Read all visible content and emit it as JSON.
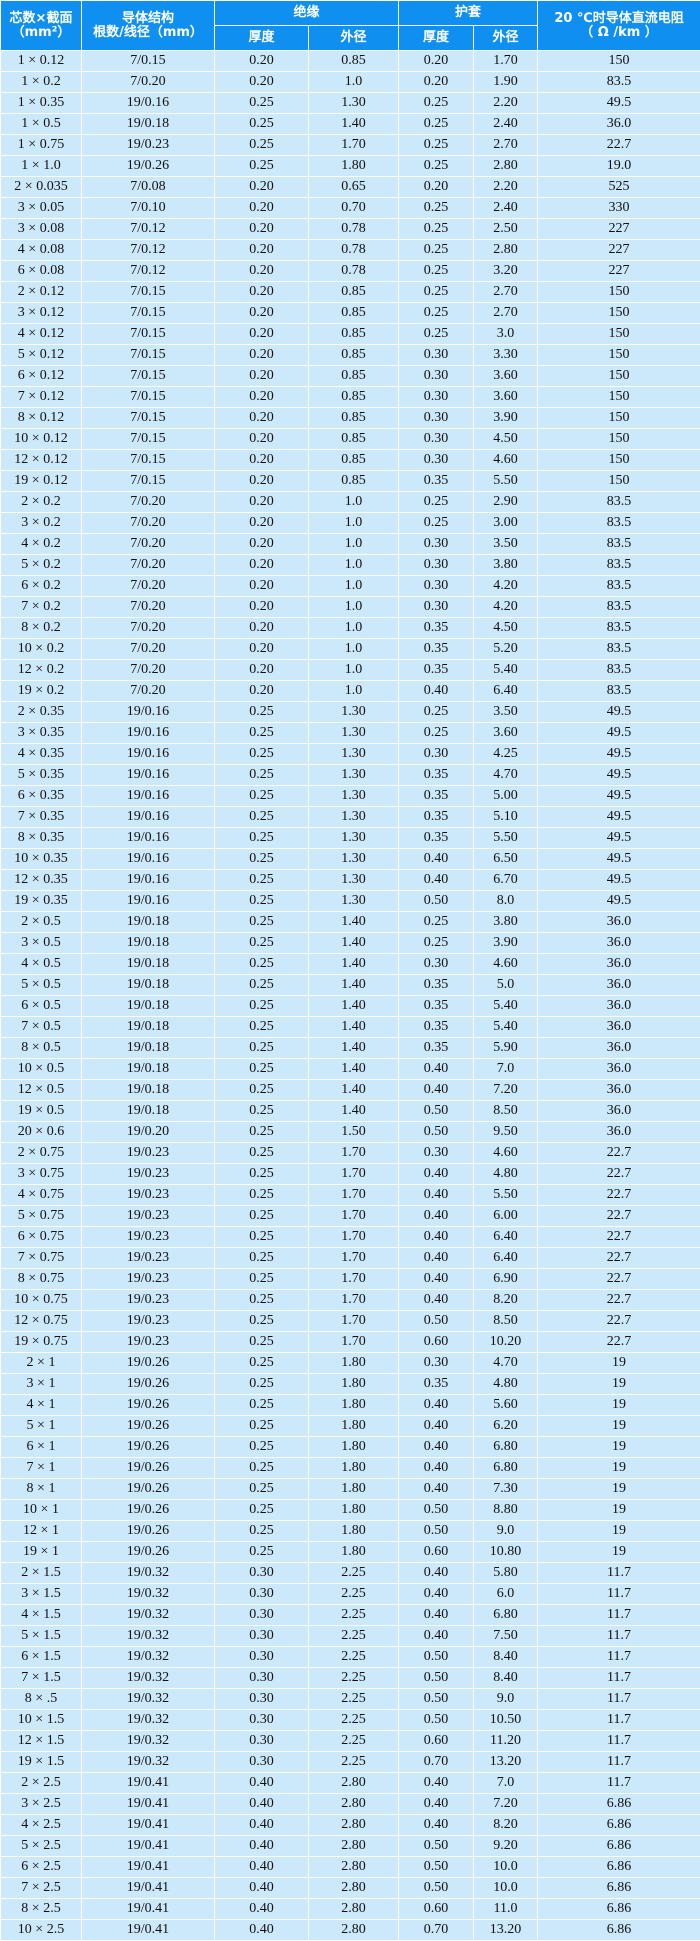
{
  "header": {
    "spec": {
      "title": "芯数×截面",
      "unit": "（mm²）"
    },
    "conductor": {
      "title": "导体结构",
      "unit": "根数/线径（mm）"
    },
    "insulation": {
      "title": "绝缘",
      "sub": [
        "厚度",
        "外径"
      ]
    },
    "sheath": {
      "title": "护套",
      "sub": [
        "厚度",
        "外径"
      ]
    },
    "resistance": {
      "title": "20 ℃时导体直流电阻",
      "unit": "（ Ω /km ）"
    }
  },
  "rows": [
    [
      "1 × 0.12",
      "7/0.15",
      "0.20",
      "0.85",
      "0.20",
      "1.70",
      "150"
    ],
    [
      "1 × 0.2",
      "7/0.20",
      "0.20",
      "1.0",
      "0.20",
      "1.90",
      "83.5"
    ],
    [
      "1 × 0.35",
      "19/0.16",
      "0.25",
      "1.30",
      "0.25",
      "2.20",
      "49.5"
    ],
    [
      "1 × 0.5",
      "19/0.18",
      "0.25",
      "1.40",
      "0.25",
      "2.40",
      "36.0"
    ],
    [
      "1 × 0.75",
      "19/0.23",
      "0.25",
      "1.70",
      "0.25",
      "2.70",
      "22.7"
    ],
    [
      "1 × 1.0",
      "19/0.26",
      "0.25",
      "1.80",
      "0.25",
      "2.80",
      "19.0"
    ],
    [
      "2 × 0.035",
      "7/0.08",
      "0.20",
      "0.65",
      "0.20",
      "2.20",
      "525"
    ],
    [
      "3 × 0.05",
      "7/0.10",
      "0.20",
      "0.70",
      "0.25",
      "2.40",
      "330"
    ],
    [
      "3 × 0.08",
      "7/0.12",
      "0.20",
      "0.78",
      "0.25",
      "2.50",
      "227"
    ],
    [
      "4 × 0.08",
      "7/0.12",
      "0.20",
      "0.78",
      "0.25",
      "2.80",
      "227"
    ],
    [
      "6 × 0.08",
      "7/0.12",
      "0.20",
      "0.78",
      "0.25",
      "3.20",
      "227"
    ],
    [
      "2 × 0.12",
      "7/0.15",
      "0.20",
      "0.85",
      "0.25",
      "2.70",
      "150"
    ],
    [
      "3 × 0.12",
      "7/0.15",
      "0.20",
      "0.85",
      "0.25",
      "2.70",
      "150"
    ],
    [
      "4 × 0.12",
      "7/0.15",
      "0.20",
      "0.85",
      "0.25",
      "3.0",
      "150"
    ],
    [
      "5 × 0.12",
      "7/0.15",
      "0.20",
      "0.85",
      "0.30",
      "3.30",
      "150"
    ],
    [
      "6 × 0.12",
      "7/0.15",
      "0.20",
      "0.85",
      "0.30",
      "3.60",
      "150"
    ],
    [
      "7 × 0.12",
      "7/0.15",
      "0.20",
      "0.85",
      "0.30",
      "3.60",
      "150"
    ],
    [
      "8 × 0.12",
      "7/0.15",
      "0.20",
      "0.85",
      "0.30",
      "3.90",
      "150"
    ],
    [
      "10 × 0.12",
      "7/0.15",
      "0.20",
      "0.85",
      "0.30",
      "4.50",
      "150"
    ],
    [
      "12 × 0.12",
      "7/0.15",
      "0.20",
      "0.85",
      "0.30",
      "4.60",
      "150"
    ],
    [
      "19 × 0.12",
      "7/0.15",
      "0.20",
      "0.85",
      "0.35",
      "5.50",
      "150"
    ],
    [
      "2 × 0.2",
      "7/0.20",
      "0.20",
      "1.0",
      "0.25",
      "2.90",
      "83.5"
    ],
    [
      "3 × 0.2",
      "7/0.20",
      "0.20",
      "1.0",
      "0.25",
      "3.00",
      "83.5"
    ],
    [
      "4 × 0.2",
      "7/0.20",
      "0.20",
      "1.0",
      "0.30",
      "3.50",
      "83.5"
    ],
    [
      "5 × 0.2",
      "7/0.20",
      "0.20",
      "1.0",
      "0.30",
      "3.80",
      "83.5"
    ],
    [
      "6 × 0.2",
      "7/0.20",
      "0.20",
      "1.0",
      "0.30",
      "4.20",
      "83.5"
    ],
    [
      "7 × 0.2",
      "7/0.20",
      "0.20",
      "1.0",
      "0.30",
      "4.20",
      "83.5"
    ],
    [
      "8 × 0.2",
      "7/0.20",
      "0.20",
      "1.0",
      "0.35",
      "4.50",
      "83.5"
    ],
    [
      "10 × 0.2",
      "7/0.20",
      "0.20",
      "1.0",
      "0.35",
      "5.20",
      "83.5"
    ],
    [
      "12 × 0.2",
      "7/0.20",
      "0.20",
      "1.0",
      "0.35",
      "5.40",
      "83.5"
    ],
    [
      "19 × 0.2",
      "7/0.20",
      "0.20",
      "1.0",
      "0.40",
      "6.40",
      "83.5"
    ],
    [
      "2 × 0.35",
      "19/0.16",
      "0.25",
      "1.30",
      "0.25",
      "3.50",
      "49.5"
    ],
    [
      "3 × 0.35",
      "19/0.16",
      "0.25",
      "1.30",
      "0.25",
      "3.60",
      "49.5"
    ],
    [
      "4 × 0.35",
      "19/0.16",
      "0.25",
      "1.30",
      "0.30",
      "4.25",
      "49.5"
    ],
    [
      "5 × 0.35",
      "19/0.16",
      "0.25",
      "1.30",
      "0.35",
      "4.70",
      "49.5"
    ],
    [
      "6 × 0.35",
      "19/0.16",
      "0.25",
      "1.30",
      "0.35",
      "5.00",
      "49.5"
    ],
    [
      "7 × 0.35",
      "19/0.16",
      "0.25",
      "1.30",
      "0.35",
      "5.10",
      "49.5"
    ],
    [
      "8 × 0.35",
      "19/0.16",
      "0.25",
      "1.30",
      "0.35",
      "5.50",
      "49.5"
    ],
    [
      "10 × 0.35",
      "19/0.16",
      "0.25",
      "1.30",
      "0.40",
      "6.50",
      "49.5"
    ],
    [
      "12 × 0.35",
      "19/0.16",
      "0.25",
      "1.30",
      "0.40",
      "6.70",
      "49.5"
    ],
    [
      "19 × 0.35",
      "19/0.16",
      "0.25",
      "1.30",
      "0.50",
      "8.0",
      "49.5"
    ],
    [
      "2 × 0.5",
      "19/0.18",
      "0.25",
      "1.40",
      "0.25",
      "3.80",
      "36.0"
    ],
    [
      "3 × 0.5",
      "19/0.18",
      "0.25",
      "1.40",
      "0.25",
      "3.90",
      "36.0"
    ],
    [
      "4 × 0.5",
      "19/0.18",
      "0.25",
      "1.40",
      "0.30",
      "4.60",
      "36.0"
    ],
    [
      "5 × 0.5",
      "19/0.18",
      "0.25",
      "1.40",
      "0.35",
      "5.0",
      "36.0"
    ],
    [
      "6 × 0.5",
      "19/0.18",
      "0.25",
      "1.40",
      "0.35",
      "5.40",
      "36.0"
    ],
    [
      "7 × 0.5",
      "19/0.18",
      "0.25",
      "1.40",
      "0.35",
      "5.40",
      "36.0"
    ],
    [
      "8 × 0.5",
      "19/0.18",
      "0.25",
      "1.40",
      "0.35",
      "5.90",
      "36.0"
    ],
    [
      "10 × 0.5",
      "19/0.18",
      "0.25",
      "1.40",
      "0.40",
      "7.0",
      "36.0"
    ],
    [
      "12 × 0.5",
      "19/0.18",
      "0.25",
      "1.40",
      "0.40",
      "7.20",
      "36.0"
    ],
    [
      "19 × 0.5",
      "19/0.18",
      "0.25",
      "1.40",
      "0.50",
      "8.50",
      "36.0"
    ],
    [
      "20 × 0.6",
      "19/0.20",
      "0.25",
      "1.50",
      "0.50",
      "9.50",
      "36.0"
    ],
    [
      "2 × 0.75",
      "19/0.23",
      "0.25",
      "1.70",
      "0.30",
      "4.60",
      "22.7"
    ],
    [
      "3 × 0.75",
      "19/0.23",
      "0.25",
      "1.70",
      "0.40",
      "4.80",
      "22.7"
    ],
    [
      "4 × 0.75",
      "19/0.23",
      "0.25",
      "1.70",
      "0.40",
      "5.50",
      "22.7"
    ],
    [
      "5 × 0.75",
      "19/0.23",
      "0.25",
      "1.70",
      "0.40",
      "6.00",
      "22.7"
    ],
    [
      "6 × 0.75",
      "19/0.23",
      "0.25",
      "1.70",
      "0.40",
      "6.40",
      "22.7"
    ],
    [
      "7 × 0.75",
      "19/0.23",
      "0.25",
      "1.70",
      "0.40",
      "6.40",
      "22.7"
    ],
    [
      "8 × 0.75",
      "19/0.23",
      "0.25",
      "1.70",
      "0.40",
      "6.90",
      "22.7"
    ],
    [
      "10 × 0.75",
      "19/0.23",
      "0.25",
      "1.70",
      "0.40",
      "8.20",
      "22.7"
    ],
    [
      "12 × 0.75",
      "19/0.23",
      "0.25",
      "1.70",
      "0.50",
      "8.50",
      "22.7"
    ],
    [
      "19 × 0.75",
      "19/0.23",
      "0.25",
      "1.70",
      "0.60",
      "10.20",
      "22.7"
    ],
    [
      "2 × 1",
      "19/0.26",
      "0.25",
      "1.80",
      "0.30",
      "4.70",
      "19"
    ],
    [
      "3 × 1",
      "19/0.26",
      "0.25",
      "1.80",
      "0.35",
      "4.80",
      "19"
    ],
    [
      "4 × 1",
      "19/0.26",
      "0.25",
      "1.80",
      "0.40",
      "5.60",
      "19"
    ],
    [
      "5 × 1",
      "19/0.26",
      "0.25",
      "1.80",
      "0.40",
      "6.20",
      "19"
    ],
    [
      "6 × 1",
      "19/0.26",
      "0.25",
      "1.80",
      "0.40",
      "6.80",
      "19"
    ],
    [
      "7 × 1",
      "19/0.26",
      "0.25",
      "1.80",
      "0.40",
      "6.80",
      "19"
    ],
    [
      "8 × 1",
      "19/0.26",
      "0.25",
      "1.80",
      "0.40",
      "7.30",
      "19"
    ],
    [
      "10 × 1",
      "19/0.26",
      "0.25",
      "1.80",
      "0.50",
      "8.80",
      "19"
    ],
    [
      "12 × 1",
      "19/0.26",
      "0.25",
      "1.80",
      "0.50",
      "9.0",
      "19"
    ],
    [
      "19 × 1",
      "19/0.26",
      "0.25",
      "1.80",
      "0.60",
      "10.80",
      "19"
    ],
    [
      "2 × 1.5",
      "19/0.32",
      "0.30",
      "2.25",
      "0.40",
      "5.80",
      "11.7"
    ],
    [
      "3 × 1.5",
      "19/0.32",
      "0.30",
      "2.25",
      "0.40",
      "6.0",
      "11.7"
    ],
    [
      "4 × 1.5",
      "19/0.32",
      "0.30",
      "2.25",
      "0.40",
      "6.80",
      "11.7"
    ],
    [
      "5 × 1.5",
      "19/0.32",
      "0.30",
      "2.25",
      "0.40",
      "7.50",
      "11.7"
    ],
    [
      "6 × 1.5",
      "19/0.32",
      "0.30",
      "2.25",
      "0.50",
      "8.40",
      "11.7"
    ],
    [
      "7 × 1.5",
      "19/0.32",
      "0.30",
      "2.25",
      "0.50",
      "8.40",
      "11.7"
    ],
    [
      "8 × .5",
      "19/0.32",
      "0.30",
      "2.25",
      "0.50",
      "9.0",
      "11.7"
    ],
    [
      "10 × 1.5",
      "19/0.32",
      "0.30",
      "2.25",
      "0.50",
      "10.50",
      "11.7"
    ],
    [
      "12 × 1.5",
      "19/0.32",
      "0.30",
      "2.25",
      "0.60",
      "11.20",
      "11.7"
    ],
    [
      "19 × 1.5",
      "19/0.32",
      "0.30",
      "2.25",
      "0.70",
      "13.20",
      "11.7"
    ],
    [
      "2 × 2.5",
      "19/0.41",
      "0.40",
      "2.80",
      "0.40",
      "7.0",
      "11.7"
    ],
    [
      "3 × 2.5",
      "19/0.41",
      "0.40",
      "2.80",
      "0.40",
      "7.20",
      "6.86"
    ],
    [
      "4 × 2.5",
      "19/0.41",
      "0.40",
      "2.80",
      "0.40",
      "8.20",
      "6.86"
    ],
    [
      "5 × 2.5",
      "19/0.41",
      "0.40",
      "2.80",
      "0.50",
      "9.20",
      "6.86"
    ],
    [
      "6 × 2.5",
      "19/0.41",
      "0.40",
      "2.80",
      "0.50",
      "10.0",
      "6.86"
    ],
    [
      "7 × 2.5",
      "19/0.41",
      "0.40",
      "2.80",
      "0.50",
      "10.0",
      "6.86"
    ],
    [
      "8 × 2.5",
      "19/0.41",
      "0.40",
      "2.80",
      "0.60",
      "11.0",
      "6.86"
    ],
    [
      "10 × 2.5",
      "19/0.41",
      "0.40",
      "2.80",
      "0.70",
      "13.20",
      "6.86"
    ]
  ]
}
